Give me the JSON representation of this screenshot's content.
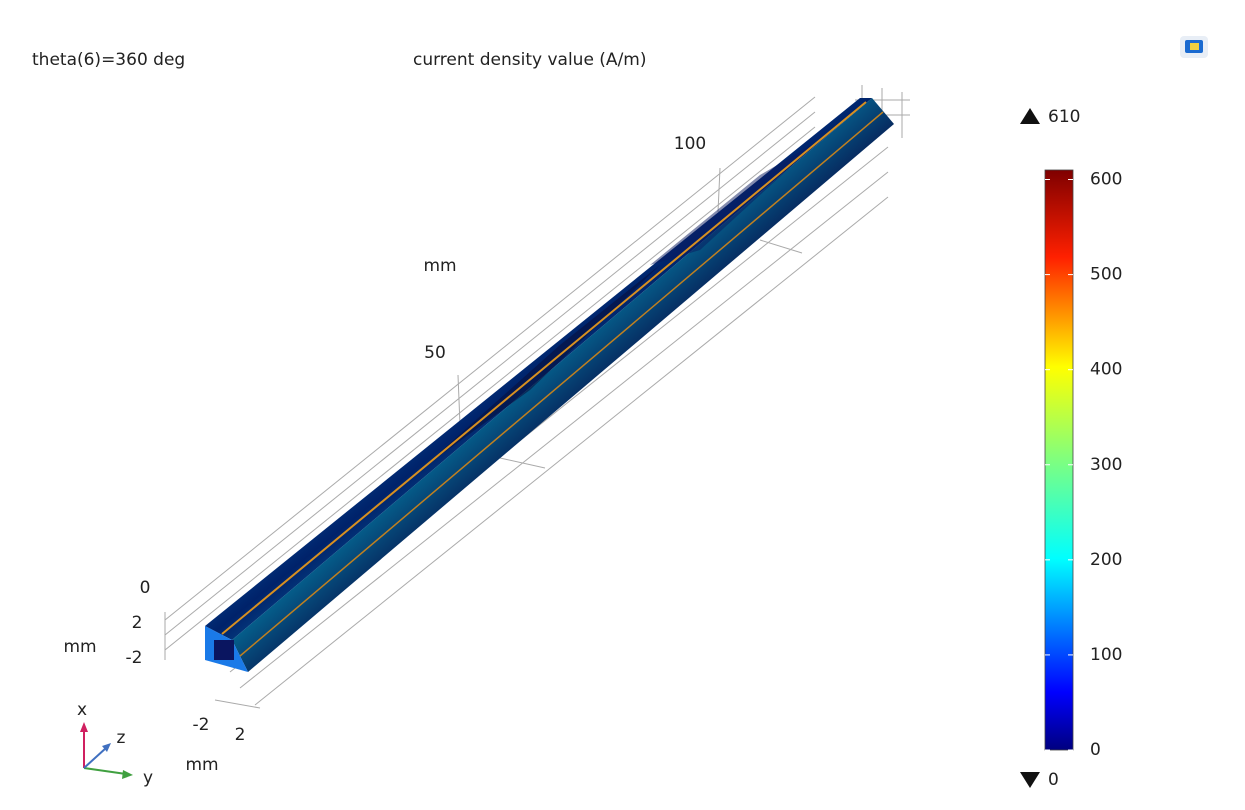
{
  "header": {
    "parameter": "theta(6)=360 deg",
    "quantity": "current density value (A/m)"
  },
  "axes": {
    "z": {
      "ticks": [
        50,
        100
      ],
      "unit": "mm"
    },
    "x": {
      "ticks": [
        0,
        2,
        -2
      ],
      "unit": "mm"
    },
    "y": {
      "ticks": [
        -2,
        2
      ],
      "unit": "mm"
    }
  },
  "triad": {
    "x": "x",
    "y": "y",
    "z": "z"
  },
  "colorbar": {
    "lim": [
      0,
      610
    ],
    "ticks": [
      0,
      100,
      200,
      300,
      400,
      500,
      600
    ],
    "max": 610,
    "min": 0
  }
}
